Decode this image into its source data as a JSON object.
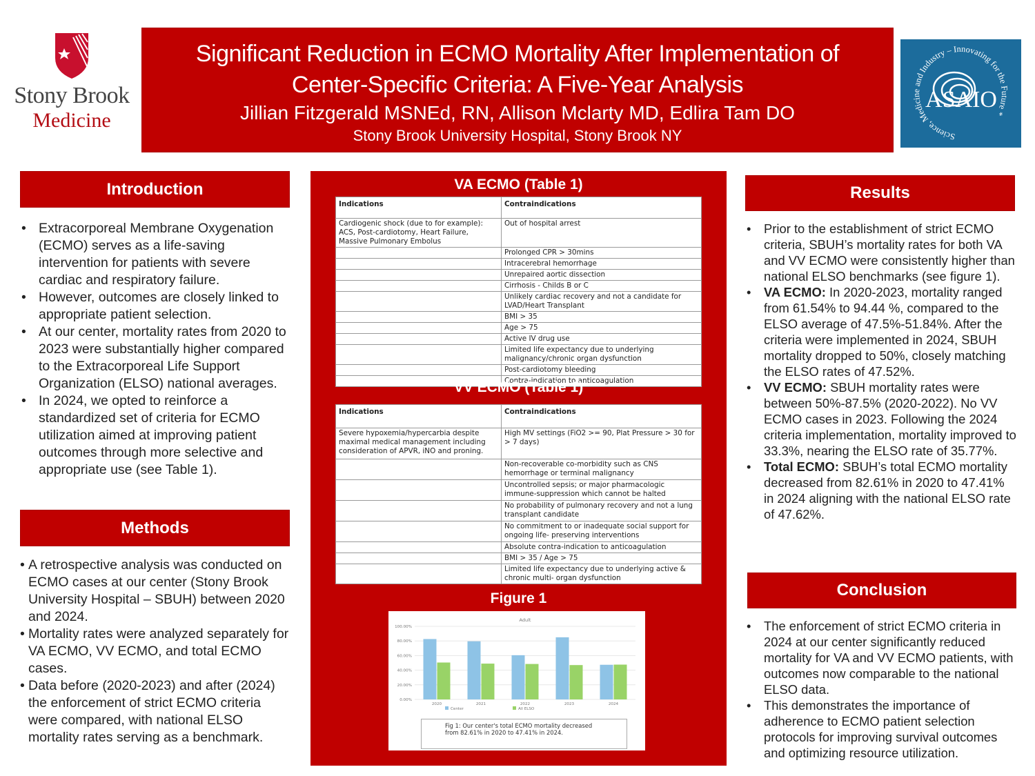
{
  "logos": {
    "left": {
      "line1": "Stony Brook",
      "line2": "Medicine"
    },
    "right": {
      "name": "ASAIO",
      "ring_text": "Science, Medicine and Industry – Innovating for the Future"
    }
  },
  "header": {
    "title_line1": "Significant Reduction in ECMO Mortality After Implementation of",
    "title_line2": "Center-Specific Criteria: A Five-Year Analysis",
    "authors": "Jillian Fitzgerald MSNEd, RN, Allison Mclarty MD, Edlira Tam DO",
    "affiliation": "Stony Brook University Hospital, Stony Brook NY"
  },
  "introduction": {
    "heading": "Introduction",
    "bullets": [
      "Extracorporeal Membrane Oxygenation (ECMO) serves as a life-saving intervention for patients with severe cardiac and respiratory failure.",
      "However, outcomes are closely linked to appropriate patient selection.",
      "At our center, mortality rates from 2020 to 2023 were substantially higher compared to the Extracorporeal Life Support Organization (ELSO) national averages.",
      "In 2024, we opted to reinforce a standardized set of criteria for ECMO utilization aimed at improving patient outcomes through more selective and appropriate use (see Table 1)."
    ]
  },
  "methods": {
    "heading": "Methods",
    "bullets": [
      "A retrospective analysis was conducted on ECMO cases at our center (Stony Brook University Hospital – SBUH) between 2020 and 2024.",
      "Mortality rates were analyzed separately for VA ECMO, VV ECMO, and total ECMO cases.",
      "Data before (2020-2023) and after (2024) the enforcement of strict ECMO criteria were compared, with national ELSO mortality rates serving as a benchmark."
    ]
  },
  "va_table": {
    "title": "VA ECMO (Table 1)",
    "header_indications": "Indications",
    "header_contraindications": "Contraindications",
    "rows": [
      {
        "ind": "Cardiogenic shock (due to for example):\n ACS, Post-cardiotomy, Heart Failure, Massive Pulmonary Embolus",
        "contra": "Out of hospital arrest"
      },
      {
        "ind": "",
        "contra": "Prolonged CPR > 30mins"
      },
      {
        "ind": "",
        "contra": "Intracerebral hemorrhage"
      },
      {
        "ind": "",
        "contra": "Unrepaired aortic dissection"
      },
      {
        "ind": "",
        "contra": "Cirrhosis - Childs B or C"
      },
      {
        "ind": "",
        "contra": "Unlikely cardiac recovery and not a candidate  for LVAD/Heart Transplant"
      },
      {
        "ind": "",
        "contra": "BMI > 35"
      },
      {
        "ind": "",
        "contra": "Age > 75"
      },
      {
        "ind": "",
        "contra": "Active IV drug use"
      },
      {
        "ind": "",
        "contra": "Limited life expectancy due to underlying malignancy/chronic organ dysfunction"
      },
      {
        "ind": "",
        "contra": "Post-cardiotomy bleeding"
      },
      {
        "ind": "",
        "contra": "Contra-indication to anticoagulation"
      }
    ]
  },
  "vv_table": {
    "title": "VV ECMO (Table 1)",
    "header_indications": "Indications",
    "header_contraindications": "Contraindications",
    "rows": [
      {
        "ind": "Severe hypoxemia/hypercarbia despite maximal medical management including consideration of APVR, iNO and proning.",
        "contra": "High MV settings (FiO2 >= 90, Plat Pressure > 30 for > 7 days)"
      },
      {
        "ind": "",
        "contra": "Non-recoverable co-morbidity such as CNS hemorrhage or terminal malignancy"
      },
      {
        "ind": "",
        "contra": "Uncontrolled sepsis; or major pharmacologic immune-suppression which cannot be halted"
      },
      {
        "ind": "",
        "contra": "No probability of pulmonary recovery and not a lung transplant candidate"
      },
      {
        "ind": "",
        "contra": "No commitment to or inadequate social support for ongoing life- preserving interventions"
      },
      {
        "ind": "",
        "contra": "Absolute contra-indication to anticoagulation"
      },
      {
        "ind": "",
        "contra": "BMI > 35 / Age > 75"
      },
      {
        "ind": "",
        "contra": "Limited life expectancy due to underlying active & chronic multi- organ dysfunction"
      }
    ]
  },
  "figure": {
    "heading": "Figure 1",
    "caption": "Fig 1: Our center's total ECMO mortality decreased from 82.61% in 2020 to 47.41% in 2024."
  },
  "chart_data": {
    "type": "bar",
    "title": "Adult",
    "categories": [
      "2020",
      "2021",
      "2022",
      "2023",
      "2024"
    ],
    "series": [
      {
        "name": "Center",
        "values": [
          82.61,
          79.5,
          60.5,
          85.0,
          47.41
        ]
      },
      {
        "name": "All ELSO",
        "values": [
          50.5,
          49.0,
          48.5,
          47.0,
          47.62
        ]
      }
    ],
    "y_ticks": [
      "0.00%",
      "20.00%",
      "40.00%",
      "60.00%",
      "80.00%",
      "100.00%"
    ],
    "ylim": [
      0,
      100
    ],
    "legend": "bottom",
    "grid": true,
    "colors": [
      "#8ec3e6",
      "#99d367"
    ]
  },
  "results": {
    "heading": "Results",
    "bullets": [
      {
        "lead": "",
        "text": "Prior to the establishment of strict ECMO criteria, SBUH’s mortality rates for both VA and VV ECMO were consistently higher than national ELSO benchmarks (see figure 1)."
      },
      {
        "lead": "VA ECMO:",
        "text": " In 2020-2023, mortality ranged from 61.54% to 94.44 %, compared to the ELSO average of 47.5%-51.84%. After the criteria were implemented in 2024, SBUH mortality dropped to 50%, closely matching the ELSO rates of 47.52%."
      },
      {
        "lead": "VV ECMO:",
        "text": " SBUH mortality rates were between 50%-87.5% (2020-2022). No VV ECMO cases in 2023. Following the 2024 criteria implementation, mortality improved to 33.3%, nearing the ELSO rate of 35.77%."
      },
      {
        "lead": "Total ECMO:",
        "text": " SBUH’s total ECMO mortality decreased from 82.61% in 2020 to 47.41% in 2024 aligning with the national ELSO rate of 47.62%."
      }
    ]
  },
  "conclusion": {
    "heading": "Conclusion",
    "bullets": [
      "The enforcement of strict ECMO criteria in 2024 at our center significantly reduced mortality for VA and VV ECMO patients, with outcomes now comparable to the national ELSO data.",
      "This demonstrates the importance of adherence to ECMO patient selection protocols for improving survival outcomes and optimizing resource utilization."
    ]
  },
  "colors": {
    "brand_red": "#c00000",
    "asaio_blue": "#1c6c9c"
  }
}
